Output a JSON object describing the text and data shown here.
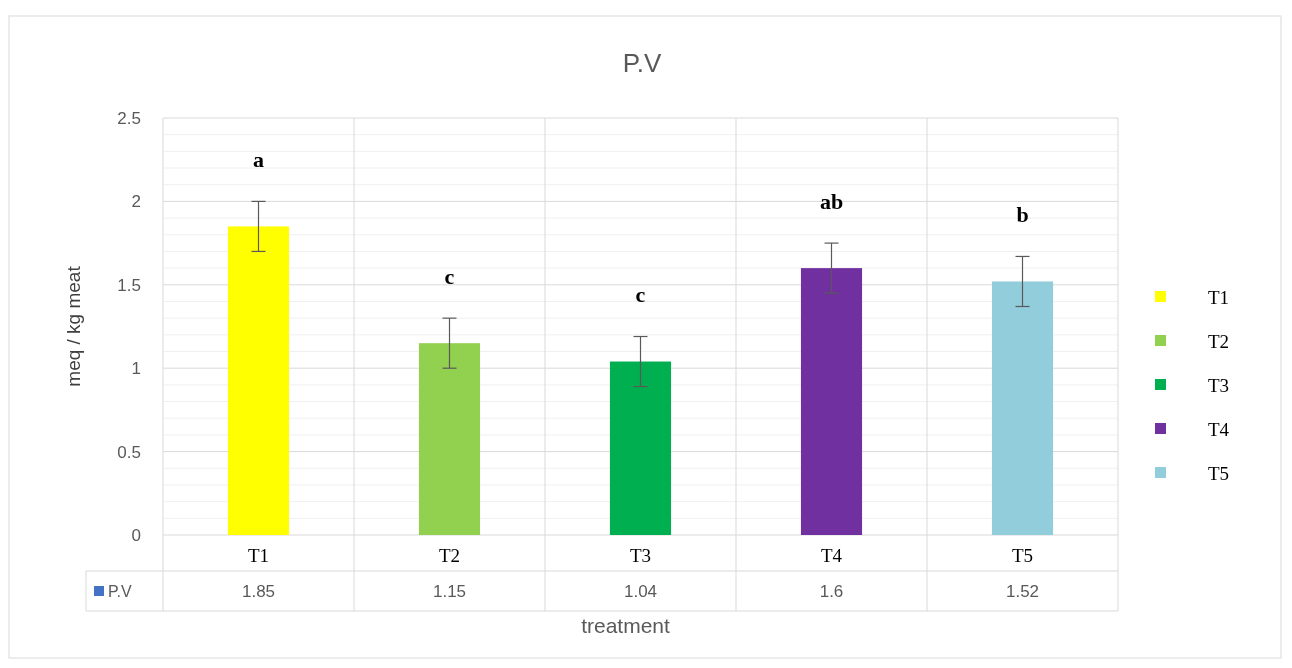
{
  "chart_data": {
    "type": "bar",
    "title": "P.V",
    "xlabel": "treatment",
    "ylabel": "meq / kg meat",
    "categories": [
      "T1",
      "T2",
      "T3",
      "T4",
      "T5"
    ],
    "series": [
      {
        "name": "P.V",
        "color": "#4472c4",
        "colors": [
          "#ffff00",
          "#92d050",
          "#00b050",
          "#7030a0",
          "#92cddc"
        ],
        "values": [
          1.85,
          1.15,
          1.04,
          1.6,
          1.52
        ],
        "errors": [
          0.15,
          0.15,
          0.15,
          0.15,
          0.15
        ]
      }
    ],
    "ylim": [
      0,
      2.5
    ],
    "yticks": [
      0,
      0.5,
      1,
      1.5,
      2,
      2.5
    ],
    "grid": "y",
    "legend": "bottom left",
    "data_labels": true,
    "annotations": [
      "a",
      "c",
      "c",
      "ab",
      "b"
    ]
  }
}
